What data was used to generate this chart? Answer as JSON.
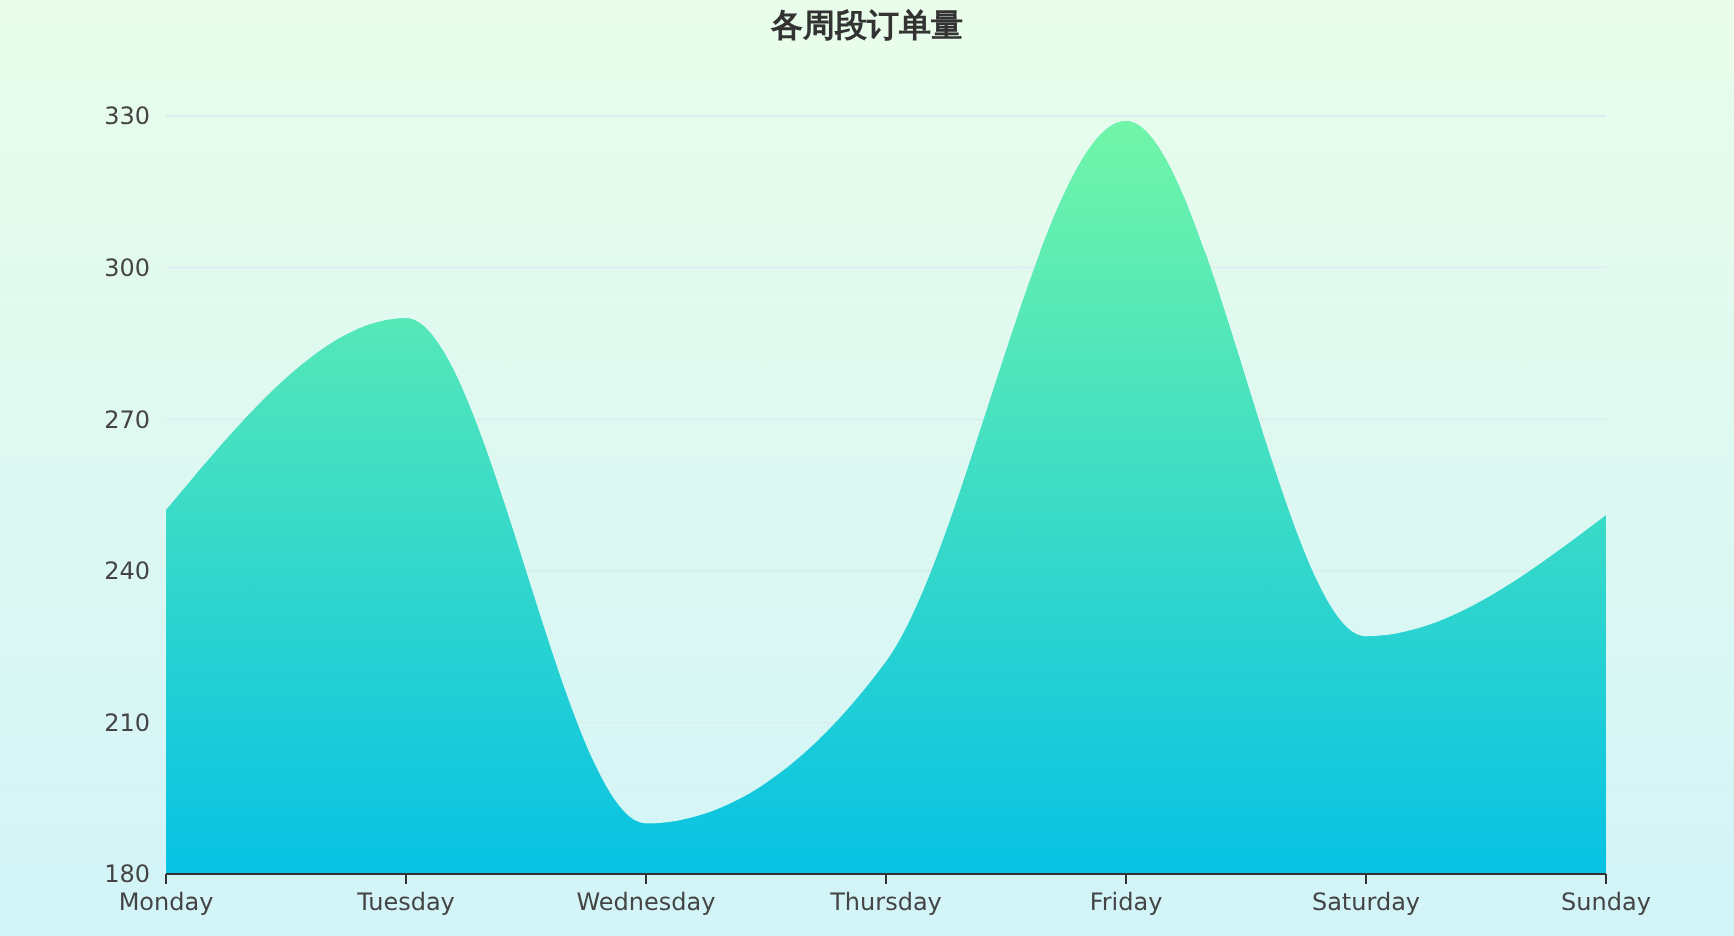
{
  "chart_data": {
    "type": "area",
    "title": "各周段订单量",
    "categories": [
      "Monday",
      "Tuesday",
      "Wednesday",
      "Thursday",
      "Friday",
      "Saturday",
      "Sunday"
    ],
    "series": [
      {
        "color": "#2ed3d0",
        "values": [
          252,
          290,
          190,
          222,
          329,
          227,
          251
        ]
      }
    ],
    "ylim": [
      180,
      330
    ],
    "yticks": [
      180,
      210,
      240,
      270,
      300,
      330
    ],
    "grid": "y"
  }
}
